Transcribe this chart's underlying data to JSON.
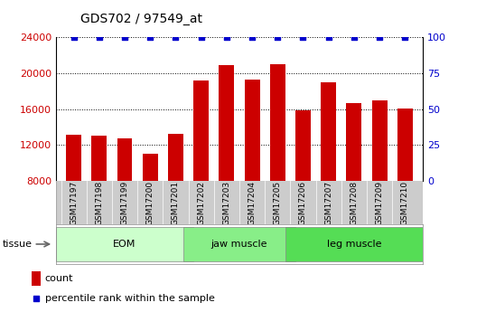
{
  "title": "GDS702 / 97549_at",
  "samples": [
    "GSM17197",
    "GSM17198",
    "GSM17199",
    "GSM17200",
    "GSM17201",
    "GSM17202",
    "GSM17203",
    "GSM17204",
    "GSM17205",
    "GSM17206",
    "GSM17207",
    "GSM17208",
    "GSM17209",
    "GSM17210"
  ],
  "counts": [
    13200,
    13100,
    12700,
    11000,
    13300,
    19200,
    20900,
    19300,
    21000,
    15900,
    19000,
    16700,
    17000,
    16100
  ],
  "percentiles": [
    100,
    100,
    100,
    100,
    100,
    100,
    100,
    100,
    100,
    100,
    100,
    100,
    100,
    100
  ],
  "bar_color": "#cc0000",
  "dot_color": "#0000cc",
  "ylim_left": [
    8000,
    24000
  ],
  "ylim_right": [
    0,
    100
  ],
  "yticks_left": [
    8000,
    12000,
    16000,
    20000,
    24000
  ],
  "yticks_right": [
    0,
    25,
    50,
    75,
    100
  ],
  "groups": [
    {
      "label": "EOM",
      "start": 0,
      "end": 5,
      "color": "#ccffcc"
    },
    {
      "label": "jaw muscle",
      "start": 5,
      "end": 9,
      "color": "#88ee88"
    },
    {
      "label": "leg muscle",
      "start": 9,
      "end": 14,
      "color": "#55dd55"
    }
  ],
  "tissue_label": "tissue",
  "legend_count_label": "count",
  "legend_pct_label": "percentile rank within the sample",
  "title_color": "#000000",
  "left_axis_color": "#cc0000",
  "right_axis_color": "#0000cc",
  "background_color": "#ffffff",
  "tick_area_color": "#cccccc",
  "bar_bottom": 8000,
  "bar_width": 0.6
}
